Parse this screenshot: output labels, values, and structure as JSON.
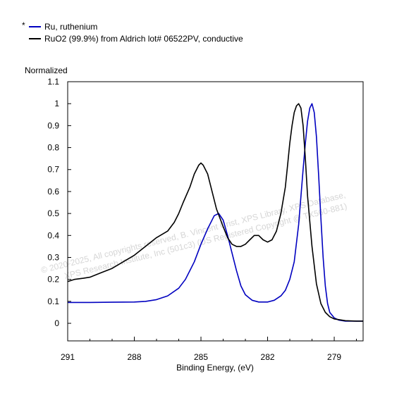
{
  "chart_data": {
    "type": "line",
    "legend": {
      "placement": "top-left",
      "marker": "*",
      "entries": [
        {
          "label": "Ru, ruthenium",
          "color": "#0000c0"
        },
        {
          "label": "RuO2 (99.9%) from Aldrich lot# 06522PV, conductive",
          "color": "#000000"
        }
      ]
    },
    "ylabel": "Normalized",
    "xlabel": "Binding Energy, (eV)",
    "x_reversed": true,
    "xlim": [
      291,
      277.7
    ],
    "ylim": [
      -0.08,
      1.1
    ],
    "x_ticks": [
      291,
      288,
      285,
      282,
      279
    ],
    "y_ticks": [
      0,
      0.1,
      0.2,
      0.3,
      0.4,
      0.5,
      0.6,
      0.7,
      0.8,
      0.9,
      1,
      1.1
    ],
    "y_tick_labels": [
      "0",
      "0.1",
      "0.2",
      "0.3",
      "0.4",
      "0.5",
      "0.6",
      "0.7",
      "0.8",
      "0.9",
      "1",
      "1.1"
    ],
    "grid": false,
    "watermark": [
      "©  2020-2025,  All copyrights reserved,   B. Vincent Crist,  XPS Library, XPS Database,",
      "XPS Research Institute, Inc (501c3)  (US Registered Copyright  @ TX560-881)"
    ],
    "series": [
      {
        "name": "Ru, ruthenium",
        "color": "#0000c0",
        "x": [
          291,
          290,
          289,
          288,
          287.5,
          287,
          286.5,
          286,
          285.7,
          285.3,
          285,
          284.7,
          284.4,
          284.2,
          284.0,
          283.8,
          283.6,
          283.4,
          283.2,
          283.0,
          282.7,
          282.4,
          282.0,
          281.7,
          281.4,
          281.2,
          281.0,
          280.8,
          280.6,
          280.4,
          280.3,
          280.2,
          280.1,
          280.0,
          279.9,
          279.8,
          279.7,
          279.6,
          279.5,
          279.4,
          279.3,
          279.2,
          279.0,
          278.8,
          278.5,
          278.2,
          277.7
        ],
        "y": [
          0.095,
          0.095,
          0.096,
          0.097,
          0.1,
          0.108,
          0.125,
          0.16,
          0.2,
          0.28,
          0.36,
          0.43,
          0.49,
          0.5,
          0.47,
          0.4,
          0.32,
          0.24,
          0.17,
          0.13,
          0.105,
          0.097,
          0.097,
          0.105,
          0.125,
          0.15,
          0.2,
          0.28,
          0.45,
          0.7,
          0.82,
          0.92,
          0.98,
          1.0,
          0.96,
          0.85,
          0.67,
          0.48,
          0.3,
          0.17,
          0.09,
          0.05,
          0.025,
          0.015,
          0.01,
          0.01,
          0.01
        ]
      },
      {
        "name": "RuO2 (99.9%) from Aldrich lot# 06522PV, conductive",
        "color": "#000000",
        "x": [
          291,
          290.7,
          290.3,
          290,
          289.5,
          289,
          288.5,
          288,
          287.5,
          287,
          286.5,
          286.2,
          286.0,
          285.8,
          285.5,
          285.3,
          285.1,
          285.0,
          284.9,
          284.7,
          284.5,
          284.3,
          284.0,
          283.8,
          283.6,
          283.4,
          283.2,
          283.0,
          282.8,
          282.6,
          282.4,
          282.2,
          282.0,
          281.8,
          281.6,
          281.4,
          281.2,
          281.1,
          281.0,
          280.9,
          280.8,
          280.7,
          280.6,
          280.5,
          280.4,
          280.3,
          280.2,
          280.0,
          279.8,
          279.6,
          279.4,
          279.2,
          279.0,
          278.5,
          278.0,
          277.7
        ],
        "y": [
          0.19,
          0.2,
          0.205,
          0.21,
          0.23,
          0.25,
          0.28,
          0.31,
          0.35,
          0.39,
          0.42,
          0.46,
          0.5,
          0.55,
          0.62,
          0.68,
          0.72,
          0.73,
          0.72,
          0.68,
          0.6,
          0.52,
          0.44,
          0.39,
          0.36,
          0.35,
          0.35,
          0.36,
          0.38,
          0.4,
          0.4,
          0.38,
          0.37,
          0.38,
          0.42,
          0.5,
          0.62,
          0.72,
          0.82,
          0.9,
          0.96,
          0.99,
          1.0,
          0.98,
          0.9,
          0.75,
          0.58,
          0.35,
          0.18,
          0.09,
          0.05,
          0.03,
          0.02,
          0.012,
          0.01,
          0.01
        ]
      }
    ]
  }
}
